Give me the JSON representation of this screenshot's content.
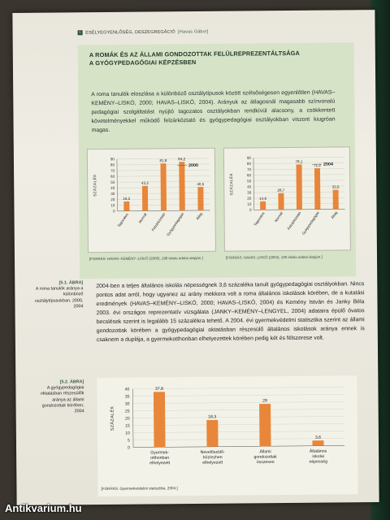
{
  "header": {
    "num": "5",
    "section": "ESÉLYEGYENLŐSÉG, DESZEGREGÁCIÓ",
    "author": "[Havas Gábor]"
  },
  "box": {
    "title_line1": "A ROMÁK ÉS AZ ÁLLAMI GONDOZOTTAK FELÜLREPREZENTÁLTSÁGA",
    "title_line2": "A GYÓGYPEDAGÓGIAI KÉPZÉSBEN",
    "text": "A roma tanulók eloszlása a különböző osztálytípusok között szélsőségesen egyenlőtlen (HAVAS–KEMÉNY–LISKÓ, 2000; HAVAS–LISKÓ, 2004). Arányuk az átlagosnál magasabb színvonalú pedagógiai szolgáltatást nyújtó tagozatos osztályokban rendkívül alacsony, a csökkentett követelményekkel működő felzárkóztató és gyógypedagógiai osztályokban viszont kiugróan magas."
  },
  "chart1": {
    "year_label": "2000",
    "source": "[FORRÁS: HAVAS–KEMÉNY–LISKÓ (2000), 198 iskola adatai alapján.]"
  },
  "chart2": {
    "year_label": "2004",
    "source": "[FORRÁS: HAVAS–LISKÓ (2004), 100 iskola adatai alapján.]"
  },
  "note1": {
    "tag": "[5.1. ÁBRA]",
    "text": "A roma tanulók aránya a különböző osztálytípusokban, 2000, 2004"
  },
  "body": {
    "text": "2004-ben a teljes általános iskolás népességnek 3,6 százaléka tanult gyógypedagógiai osztályokban. Nincs pontos adat arról, hogy ugyanez az arány mekkora volt a roma általános iskolások körében, de a kutatási eredmények (HAVAS–KEMÉNY–LISKÓ, 2000; HAVAS–LISKÓ, 2004) és Kemény István és Janky Béla 2003. évi országos reprezentatív vizsgálata (JANKY–KEMÉNY–LENGYEL, 2004) adataira épülő óvatos becslések szerint is legalább 15 százalékra tehető. A 2004. évi gyermekvédelmi statisztika szerint az állami gondozottak körében a gyógypedagógiai oktatásban részesülő általános iskolások aránya ennek is csaknem a duplája, a gyermekotthonban elhelyezettek körében pedig két és félszerese volt."
  },
  "note2": {
    "tag": "[5.2. ÁBRA]",
    "text": "A gyógypedagógiai oktatásban részesülők aránya az állami gondozottak körében, 2004"
  },
  "chart3": {
    "source": "[FORRÁS: Gyermekvédelmi statisztika, 2004.]"
  },
  "watermark": {
    "text": "Antikvarium.hu"
  },
  "chart_data": [
    {
      "type": "bar",
      "year": "2000",
      "categories": [
        "Tagozatos",
        "Normál",
        "Felzárkóztató",
        "Gyógypedagógiai",
        "Átlag"
      ],
      "values": [
        16.5,
        43.2,
        81.8,
        84.2,
        40.5
      ],
      "labels": [
        "16,5",
        "43,2",
        "81,8",
        "84,2",
        "40,5"
      ],
      "ylabel": "SZÁZALÉK",
      "yticks": [
        0,
        10,
        20,
        30,
        40,
        50,
        60,
        70,
        80,
        90
      ],
      "ylim": [
        0,
        90
      ],
      "color": "#e8863a"
    },
    {
      "type": "bar",
      "year": "2004",
      "categories": [
        "Tagozatos",
        "Normál",
        "Felzárkóztató",
        "Gyógypedagógiai",
        "Átlag"
      ],
      "values": [
        14.6,
        28.7,
        78.1,
        71.2,
        33.6
      ],
      "labels": [
        "14,6",
        "28,7",
        "78,1",
        "71,2",
        "33,6"
      ],
      "ylabel": "SZÁZALÉK",
      "yticks": [
        0,
        10,
        20,
        30,
        40,
        50,
        60,
        70,
        80,
        90
      ],
      "ylim": [
        0,
        90
      ],
      "color": "#e8863a"
    },
    {
      "type": "bar",
      "categories": [
        "Gyermek-otthonban elhelyezett",
        "Nevelőszülő-höz/ezhen elhelyezett",
        "Állami gondozottak összesen",
        "Általános iskolai népesség"
      ],
      "category_lines": [
        [
          "Gyermek-",
          "otthonban",
          "elhelyezett"
        ],
        [
          "Nevelőszülő-",
          "höz/ezhen",
          "elhelyezett"
        ],
        [
          "Állami",
          "gondozottak",
          "összesen"
        ],
        [
          "Általános",
          "iskolai",
          "népesség"
        ]
      ],
      "values": [
        37.8,
        18.3,
        29.0,
        3.6
      ],
      "labels": [
        "37,8",
        "18,3",
        "29",
        "3,6"
      ],
      "ylabel": "SZÁZALÉK",
      "yticks": [
        0,
        5,
        10,
        15,
        20,
        25,
        30,
        35,
        40
      ],
      "ylim": [
        0,
        40
      ],
      "color": "#e8863a"
    }
  ]
}
